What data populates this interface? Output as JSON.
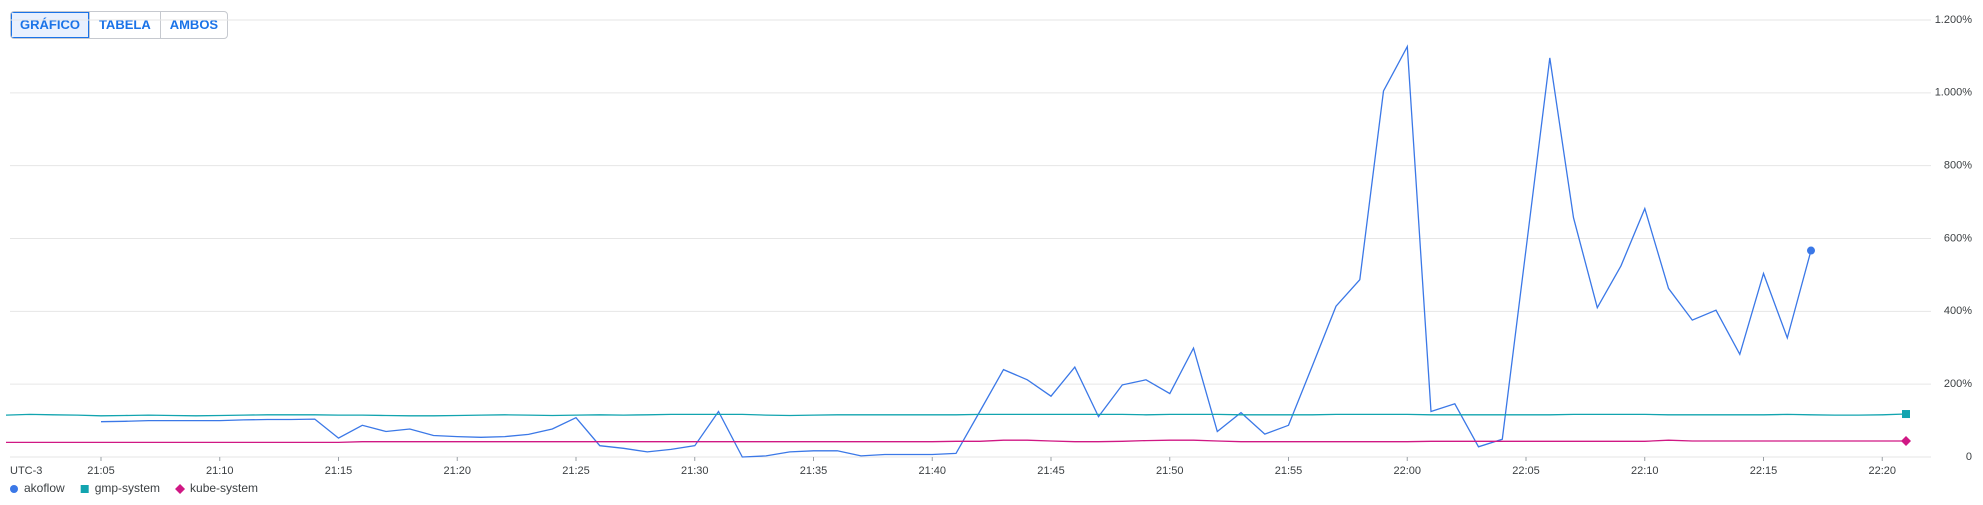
{
  "buttons": [
    "GRÁFICO",
    "TABELA",
    "AMBOS"
  ],
  "chart_data": {
    "type": "line",
    "timezone_label": "UTC-3",
    "categories": [
      null,
      null,
      null,
      null,
      "21:05",
      null,
      null,
      null,
      null,
      "21:10",
      null,
      null,
      null,
      null,
      "21:15",
      null,
      null,
      null,
      null,
      "21:20",
      null,
      null,
      null,
      null,
      "21:25",
      null,
      null,
      null,
      null,
      "21:30",
      null,
      null,
      null,
      null,
      "21:35",
      null,
      null,
      null,
      null,
      "21:40",
      null,
      null,
      null,
      null,
      "21:45",
      null,
      null,
      null,
      null,
      "21:50",
      null,
      null,
      null,
      null,
      "21:55",
      null,
      null,
      null,
      null,
      "22:00",
      null,
      null,
      null,
      null,
      "22:05",
      null,
      null,
      null,
      null,
      "22:10",
      null,
      null,
      null,
      null,
      "22:15",
      null,
      null,
      null,
      null,
      "22:20",
      null
    ],
    "series": [
      {
        "name": "akoflow",
        "color": "#3b78e7",
        "marker": "circle",
        "values": [
          null,
          null,
          null,
          null,
          97,
          98,
          100,
          100,
          100,
          100,
          102,
          103,
          103,
          104,
          52,
          87,
          70,
          77,
          59,
          56,
          54,
          56,
          62,
          77,
          108,
          31,
          24,
          14,
          21,
          31,
          125,
          0,
          3,
          14,
          17,
          17,
          3,
          7,
          7,
          7,
          10,
          125,
          240,
          212,
          167,
          247,
          111,
          198,
          212,
          174,
          299,
          70,
          122,
          63,
          87,
          250,
          414,
          487,
          1005,
          1127,
          125,
          146,
          28,
          49,
          570,
          1096,
          657,
          410,
          525,
          682,
          463,
          376,
          403,
          282,
          504,
          327,
          567,
          null,
          null,
          null,
          null
        ]
      },
      {
        "name": "gmp-system",
        "color": "#12a4af",
        "marker": "square",
        "values": [
          115,
          117,
          116,
          115,
          113,
          114,
          115,
          114,
          113,
          114,
          115,
          116,
          116,
          116,
          115,
          115,
          114,
          113,
          113,
          114,
          115,
          116,
          115,
          114,
          115,
          116,
          115,
          116,
          117,
          117,
          117,
          117,
          115,
          114,
          115,
          116,
          116,
          116,
          116,
          116,
          116,
          117,
          117,
          117,
          117,
          117,
          117,
          117,
          116,
          117,
          117,
          117,
          116,
          116,
          116,
          116,
          117,
          117,
          117,
          117,
          116,
          116,
          116,
          116,
          116,
          116,
          117,
          117,
          117,
          117,
          116,
          116,
          116,
          116,
          116,
          117,
          116,
          115,
          115,
          116,
          118
        ]
      },
      {
        "name": "kube-system",
        "color": "#d01884",
        "marker": "diamond",
        "values": [
          40,
          40,
          40,
          40,
          40,
          40,
          40,
          40,
          40,
          40,
          40,
          40,
          40,
          40,
          40,
          42,
          42,
          42,
          42,
          42,
          42,
          42,
          42,
          42,
          42,
          42,
          42,
          42,
          42,
          42,
          42,
          42,
          42,
          42,
          42,
          42,
          42,
          42,
          42,
          42,
          43,
          43,
          46,
          46,
          44,
          42,
          42,
          43,
          45,
          46,
          46,
          44,
          42,
          42,
          42,
          42,
          42,
          42,
          42,
          42,
          43,
          43,
          43,
          43,
          43,
          43,
          43,
          43,
          43,
          43,
          46,
          44,
          44,
          44,
          44,
          44,
          44,
          44,
          44,
          44,
          44
        ]
      }
    ],
    "ylim": [
      0,
      1200
    ],
    "yticks": [
      0,
      {
        "value": 200,
        "label": "200%"
      },
      {
        "value": 400,
        "label": "400%"
      },
      {
        "value": 600,
        "label": "600%"
      },
      {
        "value": 800,
        "label": "800%"
      },
      {
        "value": 1000,
        "label": "1.000%"
      },
      {
        "value": 1200,
        "label": "1.200%"
      }
    ],
    "grid": true
  }
}
